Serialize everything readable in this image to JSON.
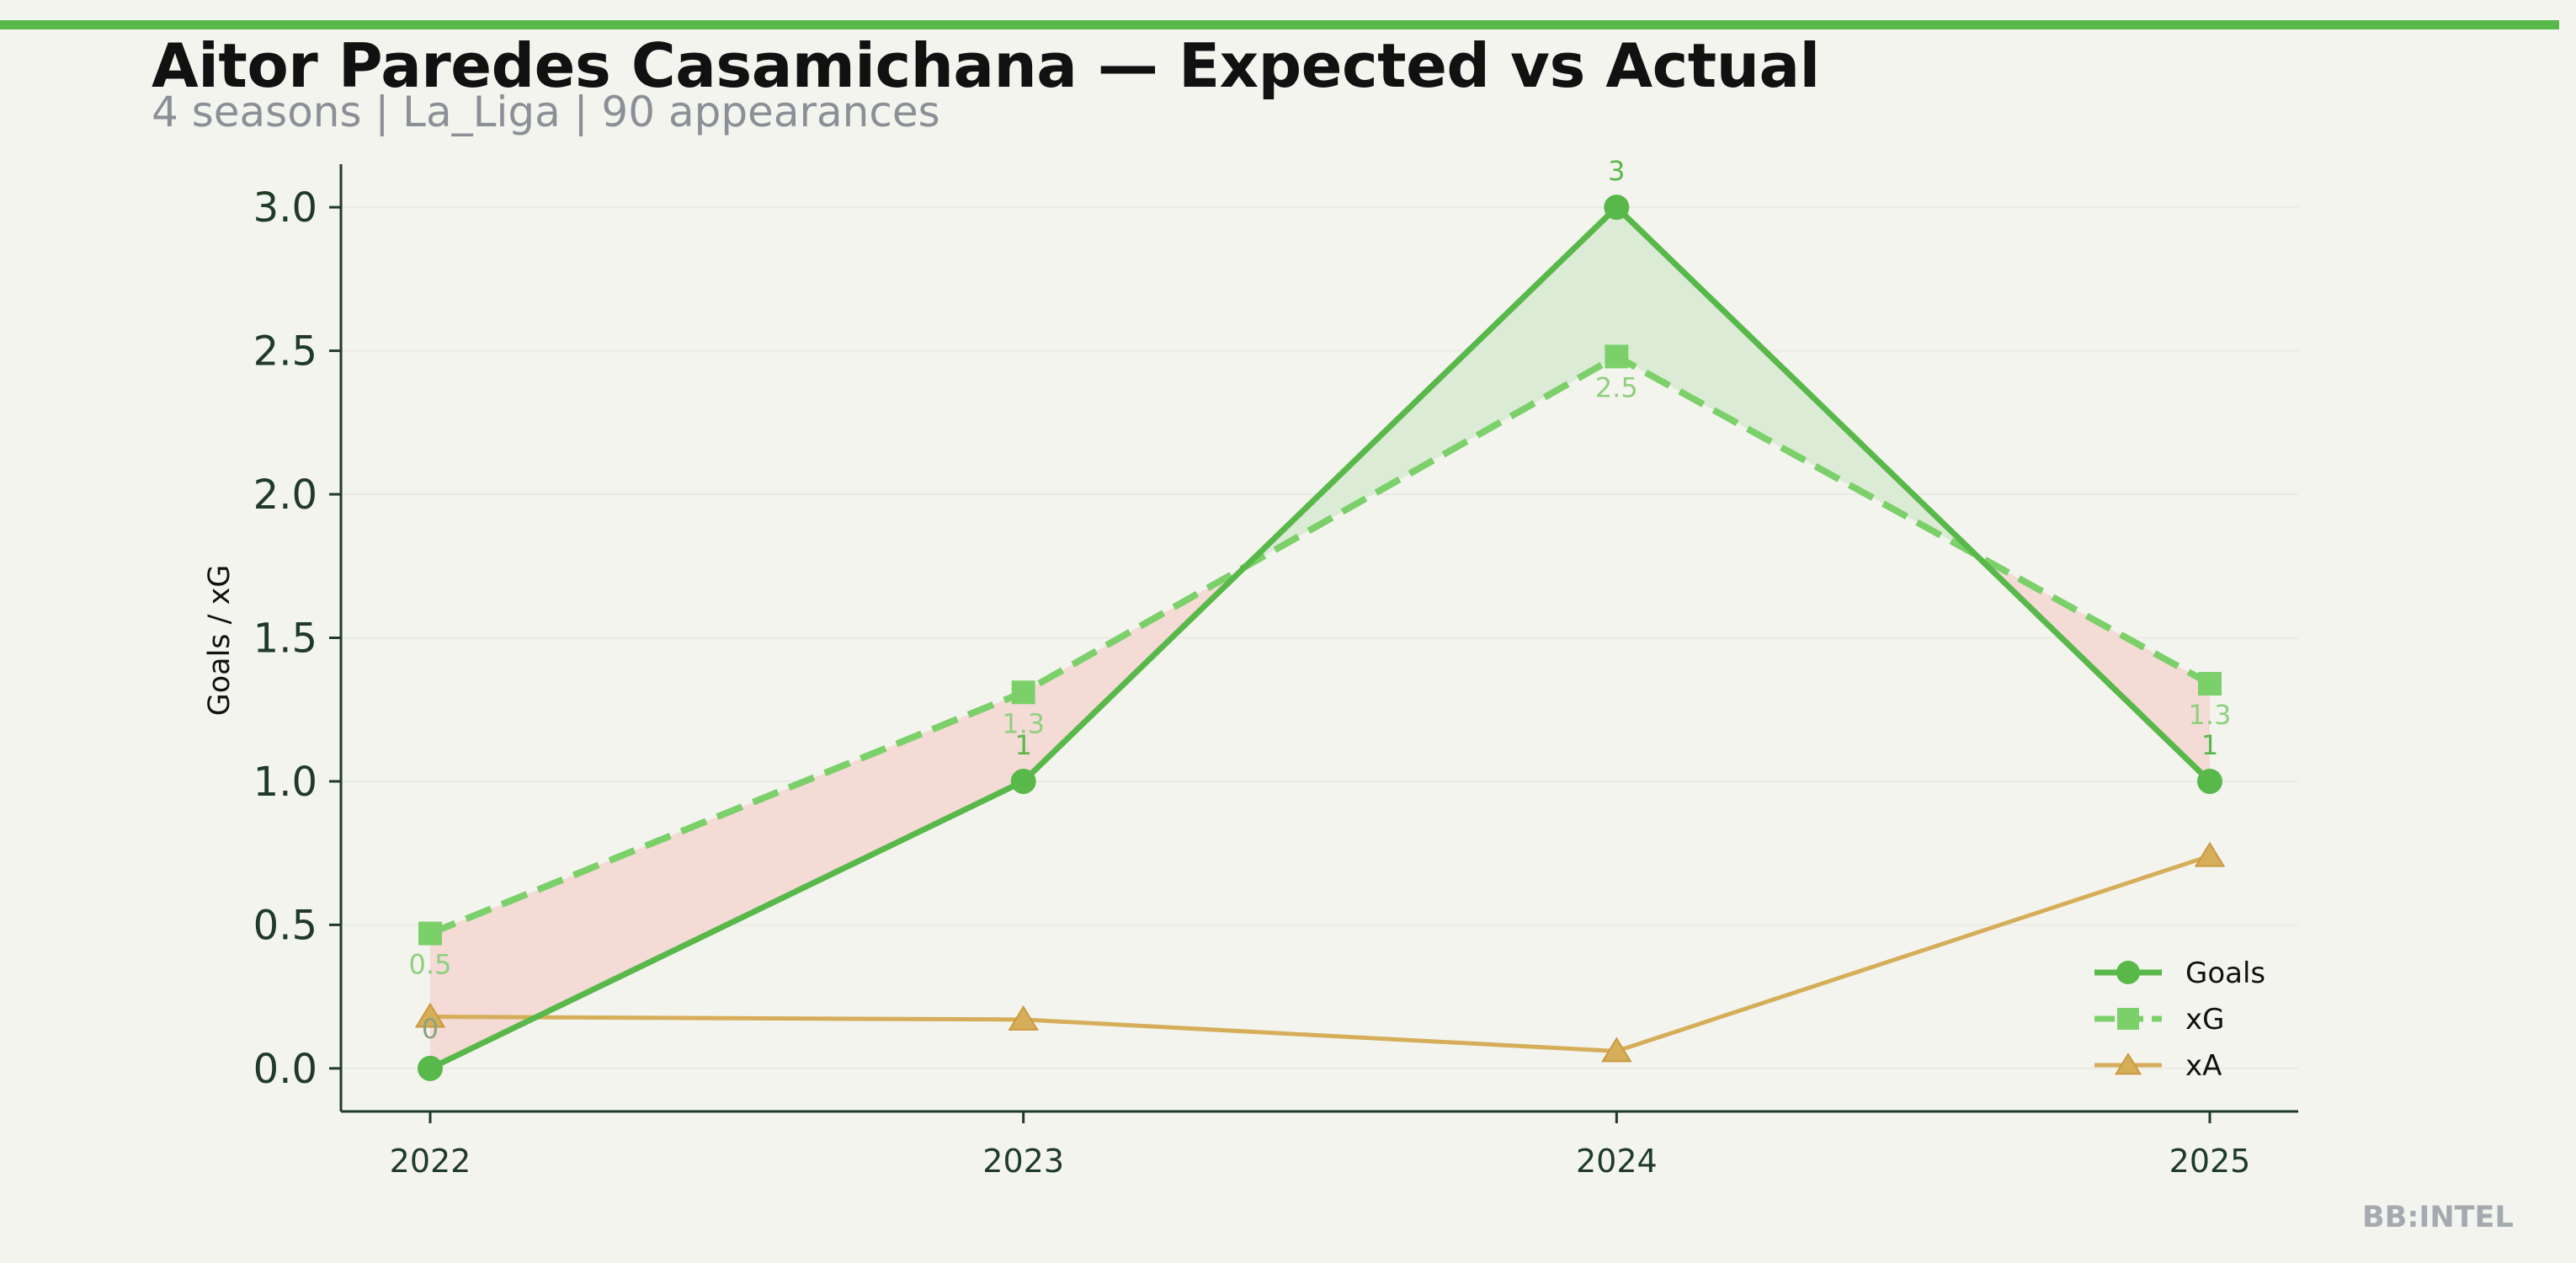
{
  "header": {
    "title": "Aitor Paredes Casamichana — Expected vs Actual",
    "subtitle": "4 seasons | La_Liga | 90 appearances"
  },
  "watermark": "BB:INTEL",
  "colors": {
    "background": "#f4f4ef",
    "accent": "#58b84a",
    "goals": "#58b84a",
    "xg": "#7bd06a",
    "xa": "#d6ae5a",
    "overperform_fill": "#dcebd6",
    "underperform_fill": "#f4dbd6",
    "axis": "#1f3b26"
  },
  "chart_data": {
    "type": "line",
    "categories": [
      "2022",
      "2023",
      "2024",
      "2025"
    ],
    "series": [
      {
        "name": "Goals",
        "values": [
          0,
          1,
          3,
          1
        ],
        "labels": [
          "0",
          "1",
          "3",
          "1"
        ]
      },
      {
        "name": "xG",
        "values": [
          0.47,
          1.31,
          2.48,
          1.34
        ],
        "labels": [
          "0.5",
          "1.3",
          "2.5",
          "1.3"
        ]
      },
      {
        "name": "xA",
        "values": [
          0.18,
          0.17,
          0.06,
          0.74
        ]
      }
    ],
    "ylabel": "Goals / xG",
    "xlabel": "",
    "ylim": [
      -0.15,
      3.15
    ],
    "yticks": [
      "0.0",
      "0.5",
      "1.0",
      "1.5",
      "2.0",
      "2.5",
      "3.0"
    ],
    "grid": true,
    "legend_position": "bottom-right"
  }
}
